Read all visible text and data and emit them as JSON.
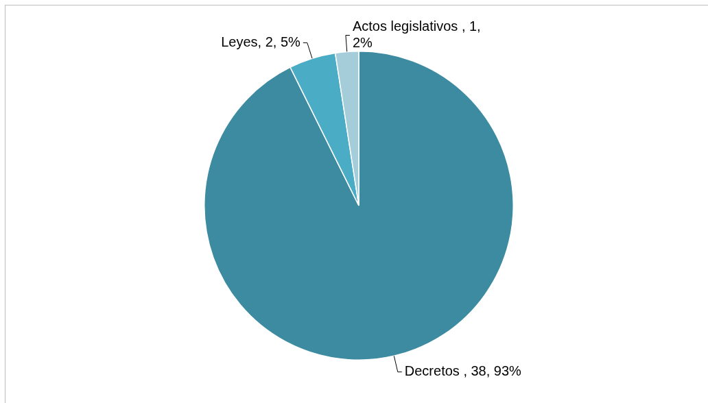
{
  "chart_data": {
    "type": "pie",
    "categories": [
      "Decretos ",
      "Leyes",
      "Actos legislativos "
    ],
    "values": [
      38,
      2,
      1
    ],
    "value_labels": [
      "38, 93%",
      "2, 5%",
      "1, 2%"
    ],
    "colors": [
      "#3d8ba1",
      "#4bacc6",
      "#a5cdd9"
    ],
    "legend": false
  }
}
